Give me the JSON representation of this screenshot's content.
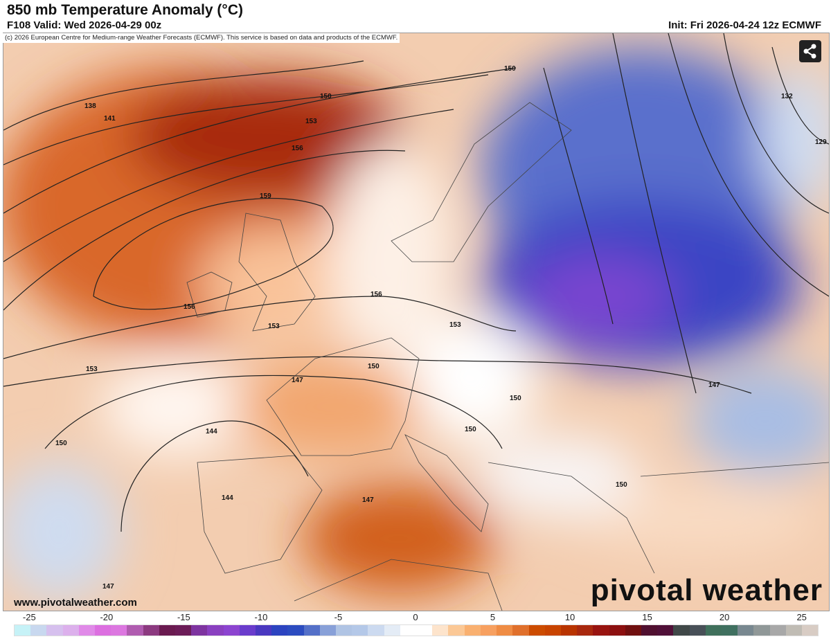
{
  "header": {
    "title": "850 mb Temperature Anomaly (°C)",
    "valid": "F108 Valid: Wed 2026-04-29 00z",
    "init": "Init: Fri 2026-04-24 12z ECMWF"
  },
  "map": {
    "copyright": "(c) 2026 European Centre for Medium-range Weather Forecasts (ECMWF). This service is based on data and products of the ECMWF.",
    "contour_labels": [
      "138",
      "141",
      "150",
      "153",
      "156",
      "159",
      "156",
      "153",
      "153",
      "150",
      "147",
      "150",
      "144",
      "144",
      "147",
      "150",
      "150",
      "150",
      "147",
      "153",
      "156",
      "150",
      "132",
      "129",
      "147"
    ],
    "share_icon": "share-icon",
    "website": "www.pivotalweather.com",
    "logo": "pivotal weather"
  },
  "colorbar": {
    "unit": "°C",
    "range": [
      -26,
      26
    ],
    "tick_labels": [
      "-25",
      "-20",
      "-15",
      "-10",
      "-5",
      "0",
      "5",
      "10",
      "15",
      "20",
      "25"
    ],
    "colors": [
      "#c6f2f7",
      "#c8d8ef",
      "#d6c0ee",
      "#dcb0ec",
      "#e08ae8",
      "#dc6fe0",
      "#dc77e0",
      "#b05cb0",
      "#8c3a80",
      "#6a1a50",
      "#6c1c58",
      "#7e34a0",
      "#8a40c0",
      "#8c44d0",
      "#6a3ccc",
      "#4a38c0",
      "#2c44c0",
      "#2c4cc0",
      "#5470c8",
      "#88a0d8",
      "#b0c4e4",
      "#b4c8e8",
      "#ccdaf0",
      "#e4ecf6",
      "#ffffff",
      "#ffffff",
      "#fde4cc",
      "#fbc896",
      "#f9b070",
      "#f7a060",
      "#ef8c44",
      "#e0702c",
      "#cc4c00",
      "#c84400",
      "#b83400",
      "#a8280e",
      "#981410",
      "#8c1010",
      "#701010",
      "#501030",
      "#501038",
      "#404848",
      "#485058",
      "#40705c",
      "#407060",
      "#788890",
      "#909898",
      "#a8a8a8",
      "#c0bcb4",
      "#d8ccc4"
    ]
  }
}
